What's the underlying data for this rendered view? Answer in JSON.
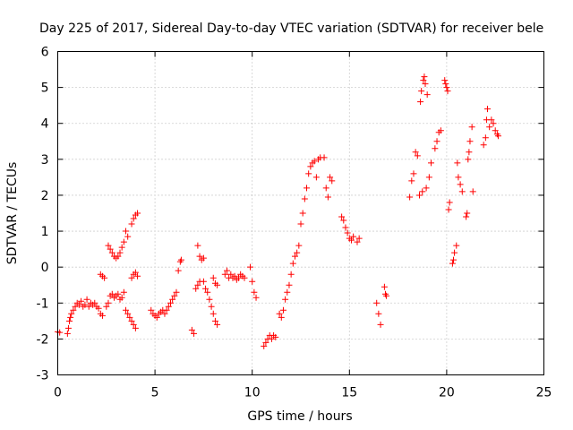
{
  "chart_data": {
    "type": "scatter",
    "title": "Day 225 of 2017, Sidereal Day-to-day VTEC variation (SDTVAR) for receiver bele",
    "xlabel": "GPS time / hours",
    "ylabel": "SDTVAR / TECUs",
    "xlim": [
      0,
      25
    ],
    "ylim": [
      -3,
      6
    ],
    "xticks": [
      0,
      5,
      10,
      15,
      20,
      25
    ],
    "yticks": [
      -3,
      -2,
      -1,
      0,
      1,
      2,
      3,
      4,
      5,
      6
    ],
    "xtick_labels": [
      "0",
      "5",
      "10",
      "15",
      "20",
      "25"
    ],
    "ytick_labels": [
      "-3",
      "-2",
      "-1",
      "0",
      "1",
      "2",
      "3",
      "4",
      "5",
      "6"
    ],
    "grid": true,
    "marker": "+",
    "color": "#ff0000",
    "series": [
      {
        "name": "SDTVAR",
        "points": [
          [
            0.0,
            -1.8
          ],
          [
            0.1,
            -1.82
          ],
          [
            0.5,
            -1.85
          ],
          [
            0.55,
            -1.7
          ],
          [
            0.6,
            -1.5
          ],
          [
            0.65,
            -1.4
          ],
          [
            0.7,
            -1.3
          ],
          [
            0.8,
            -1.2
          ],
          [
            0.9,
            -1.1
          ],
          [
            1.0,
            -1.0
          ],
          [
            1.1,
            -1.05
          ],
          [
            1.2,
            -0.95
          ],
          [
            1.3,
            -1.1
          ],
          [
            1.4,
            -1.05
          ],
          [
            1.5,
            -0.9
          ],
          [
            1.6,
            -1.1
          ],
          [
            1.7,
            -1.0
          ],
          [
            1.8,
            -1.05
          ],
          [
            1.9,
            -1.0
          ],
          [
            2.0,
            -1.1
          ],
          [
            2.1,
            -1.15
          ],
          [
            2.2,
            -1.3
          ],
          [
            2.3,
            -1.35
          ],
          [
            2.2,
            -0.2
          ],
          [
            2.3,
            -0.25
          ],
          [
            2.4,
            -0.3
          ],
          [
            2.5,
            -1.1
          ],
          [
            2.6,
            -1.0
          ],
          [
            2.7,
            -0.8
          ],
          [
            2.8,
            -0.75
          ],
          [
            2.6,
            0.6
          ],
          [
            2.7,
            0.5
          ],
          [
            2.8,
            0.4
          ],
          [
            2.9,
            0.3
          ],
          [
            3.0,
            0.25
          ],
          [
            3.1,
            0.3
          ],
          [
            3.2,
            0.4
          ],
          [
            3.3,
            0.55
          ],
          [
            2.9,
            -0.85
          ],
          [
            3.0,
            -0.8
          ],
          [
            3.1,
            -0.75
          ],
          [
            3.2,
            -0.9
          ],
          [
            3.3,
            -0.85
          ],
          [
            3.4,
            -0.7
          ],
          [
            3.5,
            -1.2
          ],
          [
            3.6,
            -1.3
          ],
          [
            3.4,
            0.7
          ],
          [
            3.5,
            1.0
          ],
          [
            3.6,
            0.85
          ],
          [
            3.7,
            -1.4
          ],
          [
            3.8,
            -1.5
          ],
          [
            3.9,
            -1.6
          ],
          [
            4.0,
            -1.7
          ],
          [
            3.8,
            -0.3
          ],
          [
            3.9,
            -0.2
          ],
          [
            4.0,
            -0.15
          ],
          [
            4.1,
            -0.25
          ],
          [
            3.8,
            1.2
          ],
          [
            3.9,
            1.35
          ],
          [
            4.0,
            1.45
          ],
          [
            4.1,
            1.5
          ],
          [
            4.8,
            -1.2
          ],
          [
            4.9,
            -1.3
          ],
          [
            5.0,
            -1.35
          ],
          [
            5.1,
            -1.4
          ],
          [
            5.2,
            -1.3
          ],
          [
            5.3,
            -1.25
          ],
          [
            5.4,
            -1.2
          ],
          [
            5.5,
            -1.3
          ],
          [
            5.6,
            -1.2
          ],
          [
            5.7,
            -1.1
          ],
          [
            5.8,
            -1.0
          ],
          [
            5.9,
            -0.9
          ],
          [
            6.0,
            -0.8
          ],
          [
            6.1,
            -0.7
          ],
          [
            6.2,
            -0.1
          ],
          [
            6.3,
            0.15
          ],
          [
            6.35,
            0.2
          ],
          [
            6.9,
            -1.75
          ],
          [
            7.0,
            -1.85
          ],
          [
            7.1,
            -0.6
          ],
          [
            7.2,
            -0.5
          ],
          [
            7.3,
            -0.4
          ],
          [
            7.2,
            0.6
          ],
          [
            7.3,
            0.3
          ],
          [
            7.4,
            0.2
          ],
          [
            7.5,
            0.25
          ],
          [
            7.5,
            -0.4
          ],
          [
            7.6,
            -0.6
          ],
          [
            7.7,
            -0.7
          ],
          [
            7.8,
            -0.9
          ],
          [
            7.9,
            -1.1
          ],
          [
            8.0,
            -1.3
          ],
          [
            8.1,
            -1.5
          ],
          [
            8.2,
            -1.6
          ],
          [
            8.0,
            -0.3
          ],
          [
            8.1,
            -0.45
          ],
          [
            8.2,
            -0.5
          ],
          [
            8.6,
            -0.2
          ],
          [
            8.7,
            -0.1
          ],
          [
            8.8,
            -0.3
          ],
          [
            8.9,
            -0.2
          ],
          [
            9.0,
            -0.3
          ],
          [
            9.1,
            -0.25
          ],
          [
            9.2,
            -0.35
          ],
          [
            9.3,
            -0.3
          ],
          [
            9.4,
            -0.2
          ],
          [
            9.5,
            -0.25
          ],
          [
            9.6,
            -0.3
          ],
          [
            9.9,
            0.0
          ],
          [
            10.0,
            -0.4
          ],
          [
            10.1,
            -0.7
          ],
          [
            10.2,
            -0.85
          ],
          [
            10.6,
            -2.2
          ],
          [
            10.7,
            -2.1
          ],
          [
            10.8,
            -2.0
          ],
          [
            10.9,
            -1.9
          ],
          [
            11.0,
            -2.0
          ],
          [
            11.1,
            -1.9
          ],
          [
            11.2,
            -1.95
          ],
          [
            11.4,
            -1.3
          ],
          [
            11.5,
            -1.4
          ],
          [
            11.6,
            -1.2
          ],
          [
            11.7,
            -0.9
          ],
          [
            11.8,
            -0.7
          ],
          [
            11.9,
            -0.5
          ],
          [
            12.0,
            -0.2
          ],
          [
            12.1,
            0.1
          ],
          [
            12.2,
            0.3
          ],
          [
            12.3,
            0.4
          ],
          [
            12.4,
            0.6
          ],
          [
            12.5,
            1.2
          ],
          [
            12.6,
            1.5
          ],
          [
            12.7,
            1.9
          ],
          [
            12.8,
            2.2
          ],
          [
            12.9,
            2.6
          ],
          [
            13.0,
            2.8
          ],
          [
            13.1,
            2.9
          ],
          [
            13.2,
            2.95
          ],
          [
            13.3,
            2.5
          ],
          [
            13.4,
            3.0
          ],
          [
            13.5,
            3.05
          ],
          [
            13.7,
            3.05
          ],
          [
            13.8,
            2.2
          ],
          [
            13.9,
            1.95
          ],
          [
            14.0,
            2.5
          ],
          [
            14.1,
            2.4
          ],
          [
            14.6,
            1.4
          ],
          [
            14.7,
            1.3
          ],
          [
            14.8,
            1.1
          ],
          [
            14.9,
            0.95
          ],
          [
            15.0,
            0.8
          ],
          [
            15.1,
            0.75
          ],
          [
            15.2,
            0.85
          ],
          [
            15.4,
            0.7
          ],
          [
            15.5,
            0.8
          ],
          [
            16.4,
            -1.0
          ],
          [
            16.5,
            -1.3
          ],
          [
            16.6,
            -1.6
          ],
          [
            16.8,
            -0.55
          ],
          [
            16.85,
            -0.75
          ],
          [
            16.9,
            -0.8
          ],
          [
            18.1,
            1.95
          ],
          [
            18.2,
            2.4
          ],
          [
            18.3,
            2.6
          ],
          [
            18.4,
            3.2
          ],
          [
            18.5,
            3.1
          ],
          [
            18.6,
            2.0
          ],
          [
            18.65,
            4.6
          ],
          [
            18.7,
            4.9
          ],
          [
            18.75,
            2.1
          ],
          [
            18.8,
            5.2
          ],
          [
            18.85,
            5.3
          ],
          [
            18.9,
            5.1
          ],
          [
            18.95,
            2.2
          ],
          [
            19.0,
            4.8
          ],
          [
            19.1,
            2.5
          ],
          [
            19.2,
            2.9
          ],
          [
            19.4,
            3.3
          ],
          [
            19.5,
            3.5
          ],
          [
            19.6,
            3.75
          ],
          [
            19.7,
            3.8
          ],
          [
            19.9,
            5.2
          ],
          [
            19.95,
            5.1
          ],
          [
            20.0,
            5.0
          ],
          [
            20.05,
            4.9
          ],
          [
            20.1,
            1.6
          ],
          [
            20.15,
            1.8
          ],
          [
            20.3,
            0.1
          ],
          [
            20.35,
            0.2
          ],
          [
            20.4,
            0.4
          ],
          [
            20.5,
            0.6
          ],
          [
            20.55,
            2.9
          ],
          [
            20.6,
            2.5
          ],
          [
            20.7,
            2.3
          ],
          [
            20.8,
            2.1
          ],
          [
            21.0,
            1.4
          ],
          [
            21.05,
            1.5
          ],
          [
            21.1,
            3.0
          ],
          [
            21.15,
            3.2
          ],
          [
            21.2,
            3.5
          ],
          [
            21.3,
            3.9
          ],
          [
            21.35,
            2.1
          ],
          [
            21.9,
            3.4
          ],
          [
            22.0,
            3.6
          ],
          [
            22.05,
            4.1
          ],
          [
            22.1,
            4.4
          ],
          [
            22.2,
            3.9
          ],
          [
            22.3,
            4.1
          ],
          [
            22.4,
            4.0
          ],
          [
            22.5,
            3.8
          ],
          [
            22.6,
            3.7
          ],
          [
            22.65,
            3.65
          ]
        ]
      }
    ]
  }
}
